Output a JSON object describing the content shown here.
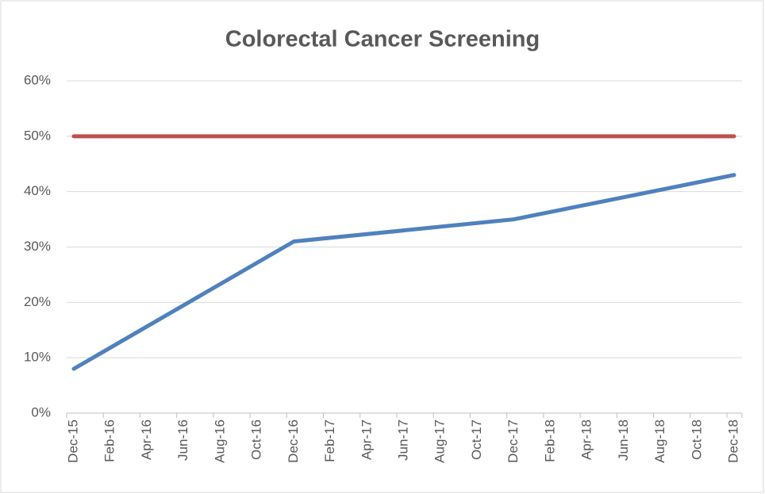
{
  "chart_data": {
    "type": "line",
    "title": "Colorectal Cancer Screening",
    "categories": [
      "Dec-15",
      "Feb-16",
      "Apr-16",
      "Jun-16",
      "Aug-16",
      "Oct-16",
      "Dec-16",
      "Feb-17",
      "Apr-17",
      "Jun-17",
      "Aug-17",
      "Oct-17",
      "Dec-17",
      "Feb-18",
      "Apr-18",
      "Jun-18",
      "Aug-18",
      "Oct-18",
      "Dec-18"
    ],
    "x": [
      "Dec-15",
      "Dec-16",
      "Dec-17",
      "Dec-18"
    ],
    "series": [
      {
        "color": "#4f81bd",
        "values": [
          8,
          31,
          35,
          43
        ]
      },
      {
        "color": "#c0504d",
        "values": [
          50,
          50,
          50,
          50
        ]
      }
    ],
    "ylim": [
      0,
      60
    ],
    "yticks": [
      {
        "value": 0,
        "label": "0%"
      },
      {
        "value": 10,
        "label": "10%"
      },
      {
        "value": 20,
        "label": "20%"
      },
      {
        "value": 30,
        "label": "30%"
      },
      {
        "value": 40,
        "label": "40%"
      },
      {
        "value": 50,
        "label": "50%"
      },
      {
        "value": 60,
        "label": "60%"
      }
    ],
    "grid": true
  }
}
